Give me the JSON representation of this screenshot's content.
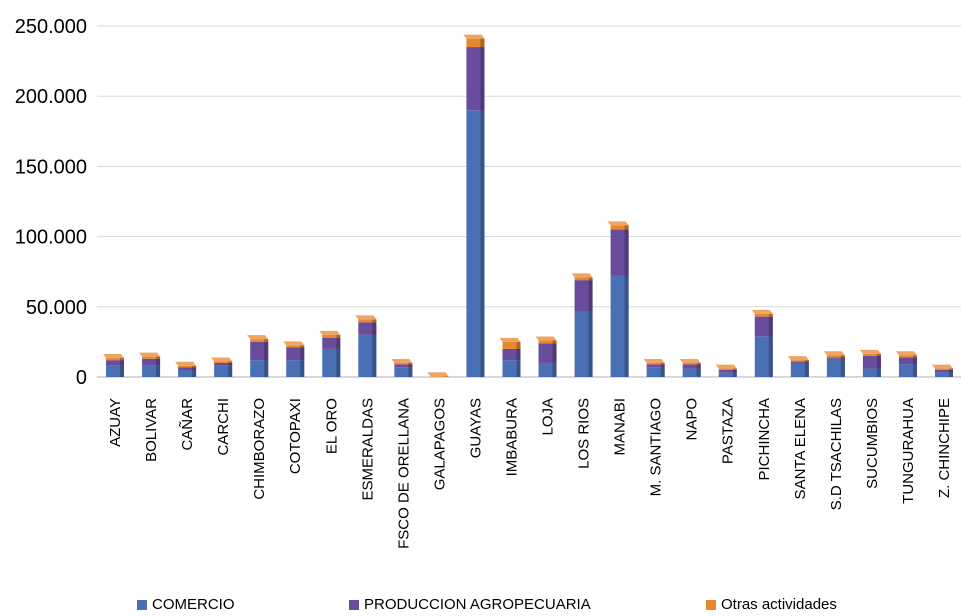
{
  "chart_data": {
    "type": "bar",
    "stacked": true,
    "categories": [
      "AZUAY",
      "BOLIVAR",
      "CAÑAR",
      "CARCHI",
      "CHIMBORAZO",
      "COTOPAXI",
      "EL ORO",
      "ESMERALDAS",
      "FSCO DE ORELLANA",
      "GALAPAGOS",
      "GUAYAS",
      "IMBABURA",
      "LOJA",
      "LOS RIOS",
      "MANABI",
      "M. SANTIAGO",
      "NAPO",
      "PASTAZA",
      "PICHINCHA",
      "SANTA ELENA",
      "S.D TSACHILAS",
      "SUCUMBIOS",
      "TUNGURAHUA",
      "Z. CHINCHIPE"
    ],
    "series": [
      {
        "name": "COMERCIO",
        "color": "#4A6FB5",
        "values": [
          8000,
          8000,
          5000,
          8000,
          12000,
          12000,
          20000,
          30000,
          7000,
          0,
          190000,
          12000,
          10000,
          47000,
          72000,
          7000,
          6000,
          3000,
          29000,
          10000,
          13000,
          6000,
          9000,
          3000
        ]
      },
      {
        "name": "PRODUCCION AGROPECUARIA",
        "color": "#6A4C9C",
        "values": [
          4000,
          5000,
          2000,
          2000,
          13000,
          9000,
          8000,
          9000,
          2000,
          0,
          45000,
          8000,
          14000,
          22000,
          33000,
          2000,
          3000,
          2000,
          14000,
          1000,
          1000,
          9000,
          5000,
          2000
        ]
      },
      {
        "name": "Otras actividades",
        "color": "#E8872E",
        "values": [
          1500,
          1500,
          1000,
          1000,
          2000,
          1500,
          2000,
          2000,
          1000,
          500,
          6000,
          5000,
          2000,
          2000,
          3000,
          1000,
          1000,
          1000,
          2000,
          1000,
          1500,
          1500,
          1500,
          1000
        ]
      }
    ],
    "yticks": [
      "0",
      "50.000",
      "100.000",
      "150.000",
      "200.000",
      "250.000"
    ],
    "ylim": [
      0,
      250000
    ],
    "grid": true,
    "legend_position": "bottom"
  }
}
